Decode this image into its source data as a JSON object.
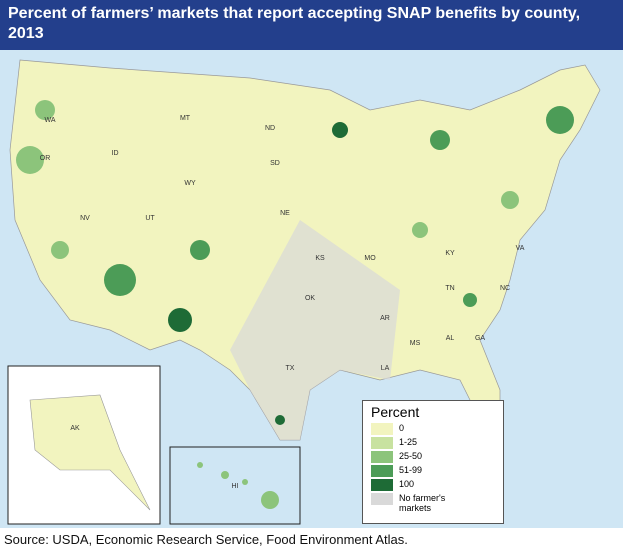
{
  "header": {
    "title": "Percent of farmers’ markets that report accepting SNAP benefits by county, 2013"
  },
  "legend": {
    "title": "Percent",
    "items": [
      {
        "label": "0",
        "color": "#f2f4bf"
      },
      {
        "label": "1-25",
        "color": "#c8e2a0"
      },
      {
        "label": "25-50",
        "color": "#8cc47b"
      },
      {
        "label": "51-99",
        "color": "#4c9c57"
      },
      {
        "label": "100",
        "color": "#1e6b36"
      },
      {
        "label": "No farmer's markets",
        "color": "#d9d9d9"
      }
    ]
  },
  "state_labels": [
    "WA",
    "OR",
    "ID",
    "MT",
    "WY",
    "ND",
    "SD",
    "NE",
    "NV",
    "UT",
    "KS",
    "MO",
    "OK",
    "TX",
    "AR",
    "LA",
    "MS",
    "AL",
    "GA",
    "TN",
    "KY",
    "NC",
    "VA",
    "AK",
    "HI"
  ],
  "source": "Source: USDA, Economic Research Service, Food Environment Atlas."
}
